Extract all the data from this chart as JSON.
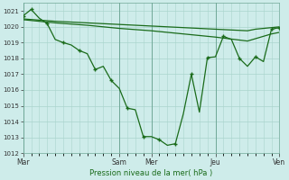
{
  "background_color": "#ceecea",
  "grid_color": "#aad4cc",
  "line_color": "#1a6b1a",
  "title": "Pression niveau de la mer( hPa )",
  "ylim": [
    1012,
    1021.5
  ],
  "yticks": [
    1012,
    1013,
    1014,
    1015,
    1016,
    1017,
    1018,
    1019,
    1020,
    1021
  ],
  "day_labels": [
    "Mar",
    "Sam",
    "Mer",
    "Jeu",
    "Ven"
  ],
  "day_positions": [
    0,
    12,
    16,
    24,
    32
  ],
  "xlim": [
    0,
    32
  ],
  "line1_x": [
    0,
    4,
    8,
    12,
    16,
    20,
    24,
    28,
    29,
    30,
    31,
    32
  ],
  "line1_y": [
    1020.5,
    1020.35,
    1020.25,
    1020.15,
    1020.05,
    1019.95,
    1019.85,
    1019.75,
    1019.85,
    1019.9,
    1019.95,
    1020.0
  ],
  "line2_x": [
    0,
    4,
    8,
    12,
    16,
    20,
    24,
    28,
    29,
    30,
    31,
    32
  ],
  "line2_y": [
    1020.45,
    1020.25,
    1020.1,
    1019.9,
    1019.75,
    1019.55,
    1019.35,
    1019.1,
    1019.25,
    1019.4,
    1019.55,
    1019.65
  ],
  "line3_x": [
    0,
    1,
    2,
    3,
    4,
    5,
    6,
    7,
    8,
    9,
    10,
    11,
    12,
    13,
    14,
    15,
    16,
    17,
    18,
    19,
    20,
    21,
    22,
    23,
    24,
    25,
    26,
    27,
    28,
    29,
    30,
    31,
    32
  ],
  "line3_y": [
    1020.7,
    1021.1,
    1020.55,
    1020.2,
    1019.2,
    1019.0,
    1018.85,
    1018.5,
    1018.3,
    1017.3,
    1017.5,
    1016.6,
    1016.1,
    1014.85,
    1014.75,
    1013.05,
    1013.05,
    1012.85,
    1012.5,
    1012.6,
    1014.5,
    1017.0,
    1014.6,
    1018.05,
    1018.1,
    1019.4,
    1019.2,
    1018.0,
    1017.5,
    1018.1,
    1017.8,
    1019.85,
    1019.95
  ],
  "marker3_x": [
    0,
    1,
    3,
    5,
    7,
    9,
    11,
    13,
    15,
    17,
    19,
    21,
    23,
    25,
    27,
    29,
    31,
    32
  ],
  "marker3_y": [
    1020.7,
    1021.1,
    1020.2,
    1019.0,
    1018.5,
    1017.3,
    1016.6,
    1014.85,
    1013.05,
    1012.85,
    1012.6,
    1017.0,
    1018.05,
    1019.4,
    1018.0,
    1018.1,
    1019.85,
    1019.95
  ]
}
